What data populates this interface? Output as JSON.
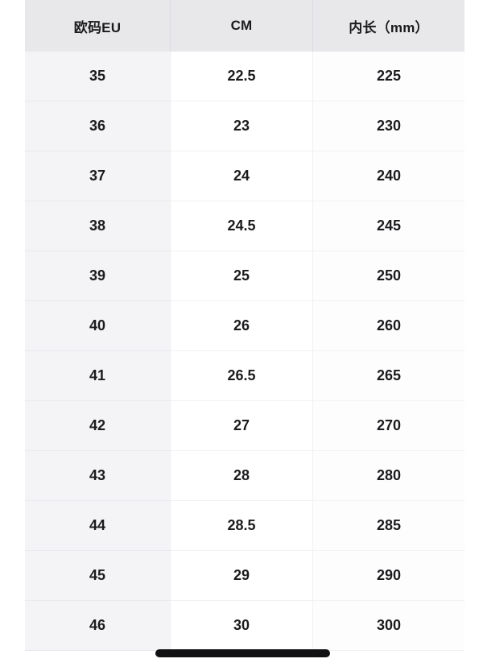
{
  "chart_data": {
    "type": "table",
    "title": "",
    "columns": [
      {
        "id": "eu",
        "label": "欧码EU"
      },
      {
        "id": "cm",
        "label": "CM"
      },
      {
        "id": "mm",
        "label": "内长（mm）"
      }
    ],
    "rows": [
      {
        "eu": "35",
        "cm": "22.5",
        "mm": "225"
      },
      {
        "eu": "36",
        "cm": "23",
        "mm": "230"
      },
      {
        "eu": "37",
        "cm": "24",
        "mm": "240"
      },
      {
        "eu": "38",
        "cm": "24.5",
        "mm": "245"
      },
      {
        "eu": "39",
        "cm": "25",
        "mm": "250"
      },
      {
        "eu": "40",
        "cm": "26",
        "mm": "260"
      },
      {
        "eu": "41",
        "cm": "26.5",
        "mm": "265"
      },
      {
        "eu": "42",
        "cm": "27",
        "mm": "270"
      },
      {
        "eu": "43",
        "cm": "28",
        "mm": "280"
      },
      {
        "eu": "44",
        "cm": "28.5",
        "mm": "285"
      },
      {
        "eu": "45",
        "cm": "29",
        "mm": "290"
      },
      {
        "eu": "46",
        "cm": "30",
        "mm": "300"
      }
    ],
    "layout": {
      "header_row": true,
      "grid": "horizontal-dividers",
      "legend_position": "none"
    }
  },
  "colors": {
    "header_bg": "#e8e8ea",
    "header_divider": "#dddde2",
    "col1_bg": "#f4f4f6",
    "col1_divider": "#e9e9ed",
    "row_divider": "#f0f0f3",
    "text": "#1b1b1d",
    "home_indicator": "#101012"
  }
}
